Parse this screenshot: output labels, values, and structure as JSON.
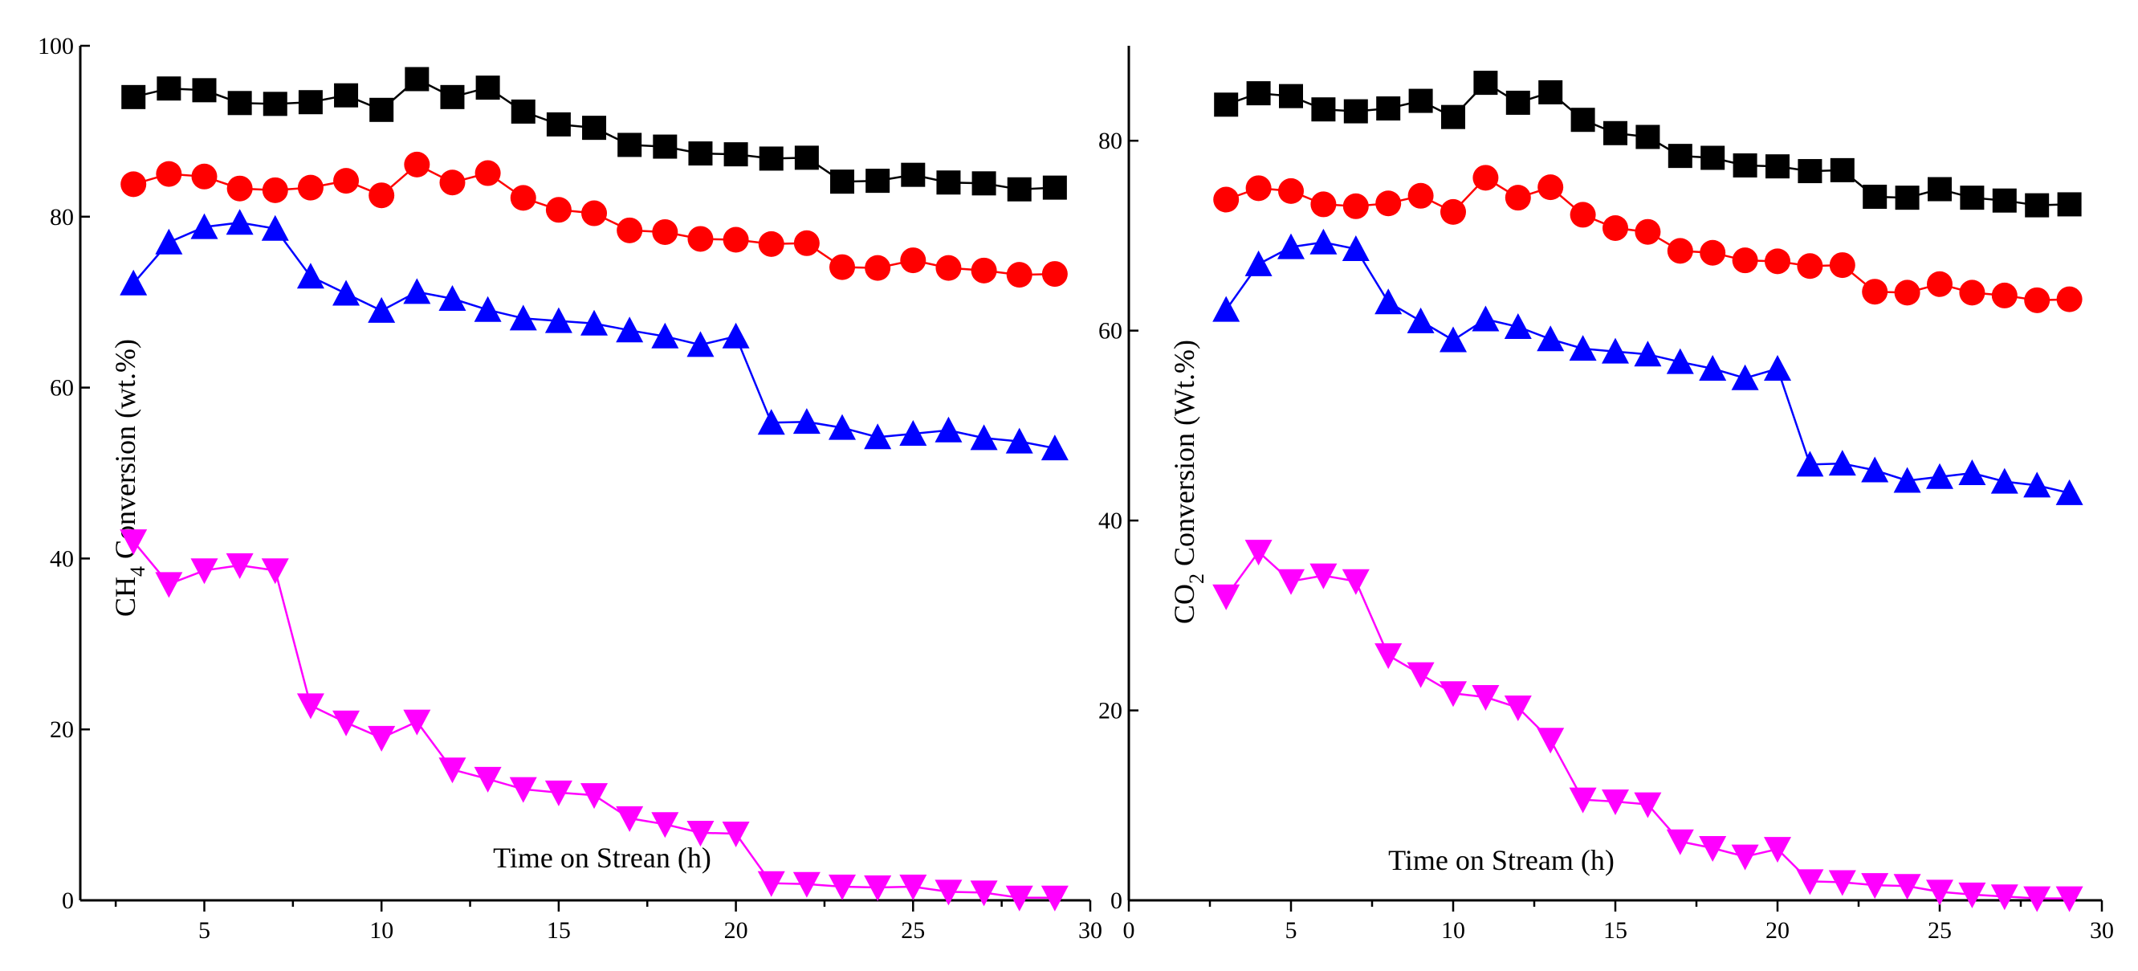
{
  "chart_data": [
    {
      "id": "left",
      "type": "line",
      "title": "",
      "xlabel": "Time on Strean (h)",
      "ylabel_parts": {
        "prefix": "CH",
        "sub": "4",
        "suffix": " Conversion (wt.%)"
      },
      "xlim": [
        1.5,
        30
      ],
      "ylim": [
        0,
        100
      ],
      "xticks": [
        5,
        10,
        15,
        20,
        25,
        30
      ],
      "yticks": [
        0,
        20,
        40,
        60,
        80,
        100
      ],
      "xtick_labels": [
        "5",
        "10",
        "15",
        "20",
        "25",
        "30"
      ],
      "ytick_labels": [
        "0",
        "20",
        "40",
        "60",
        "80",
        "100"
      ],
      "x": [
        3,
        4,
        5,
        6,
        7,
        8,
        9,
        10,
        11,
        12,
        13,
        14,
        15,
        16,
        17,
        18,
        19,
        20,
        21,
        22,
        23,
        24,
        25,
        26,
        27,
        28,
        29
      ],
      "series": [
        {
          "name": "series-1",
          "color": "#000000",
          "marker": "square",
          "values": [
            94,
            95,
            94.8,
            93.3,
            93.2,
            93.4,
            94.2,
            92.5,
            96.1,
            94,
            95.1,
            92.3,
            90.8,
            90.4,
            88.4,
            88.2,
            87.4,
            87.3,
            86.8,
            86.9,
            84.1,
            84.2,
            84.9,
            84,
            83.9,
            83.2,
            83.4
          ]
        },
        {
          "name": "series-2",
          "color": "#ff0000",
          "marker": "circle",
          "values": [
            83.8,
            85,
            84.7,
            83.3,
            83.1,
            83.4,
            84.2,
            82.5,
            86.1,
            84,
            85.1,
            82.2,
            80.8,
            80.4,
            78.4,
            78.2,
            77.4,
            77.3,
            76.8,
            76.9,
            74.1,
            74,
            74.9,
            74,
            73.7,
            73.2,
            73.3
          ]
        },
        {
          "name": "series-3",
          "color": "#0000ff",
          "marker": "triangle-up",
          "values": [
            72.2,
            77,
            78.8,
            79.3,
            78.6,
            73,
            71,
            69,
            71.2,
            70.4,
            69.1,
            68.1,
            67.8,
            67.5,
            66.7,
            66,
            65,
            66,
            55.9,
            56,
            55.3,
            54.2,
            54.6,
            55,
            54.1,
            53.7,
            52.9
          ]
        },
        {
          "name": "series-4",
          "color": "#ff00ff",
          "marker": "triangle-down",
          "values": [
            42,
            37,
            38.6,
            39.2,
            38.6,
            22.8,
            20.8,
            19,
            20.9,
            15.3,
            14.2,
            13,
            12.6,
            12.3,
            9.6,
            8.9,
            7.9,
            7.8,
            2,
            1.9,
            1.6,
            1.5,
            1.6,
            1,
            0.9,
            0.3,
            0.3
          ]
        }
      ]
    },
    {
      "id": "right",
      "type": "line",
      "title": "",
      "xlabel": "Time on Stream (h)",
      "ylabel_parts": {
        "prefix": "CO",
        "sub": "2",
        "suffix": " Conversion (Wt.%)"
      },
      "xlim": [
        0,
        30
      ],
      "ylim": [
        0,
        90
      ],
      "xticks": [
        0,
        5,
        10,
        15,
        20,
        25,
        30
      ],
      "yticks": [
        0,
        20,
        40,
        60,
        80
      ],
      "xtick_labels": [
        "0",
        "5",
        "10",
        "15",
        "20",
        "25",
        "30"
      ],
      "ytick_labels": [
        "0",
        "20",
        "40",
        "60",
        "80"
      ],
      "x": [
        3,
        4,
        5,
        6,
        7,
        8,
        9,
        10,
        11,
        12,
        13,
        14,
        15,
        16,
        17,
        18,
        19,
        20,
        21,
        22,
        23,
        24,
        25,
        26,
        27,
        28,
        29
      ],
      "series": [
        {
          "name": "series-1",
          "color": "#000000",
          "marker": "square",
          "values": [
            83.8,
            85,
            84.7,
            83.3,
            83.1,
            83.4,
            84.2,
            82.5,
            86.1,
            84,
            85.1,
            82.2,
            80.8,
            80.4,
            78.4,
            78.2,
            77.4,
            77.3,
            76.8,
            76.9,
            74.1,
            74,
            74.9,
            74,
            73.7,
            73.2,
            73.3
          ]
        },
        {
          "name": "series-2",
          "color": "#ff0000",
          "marker": "circle",
          "values": [
            73.8,
            75,
            74.7,
            73.3,
            73.1,
            73.4,
            74.2,
            72.5,
            76.1,
            74,
            75.1,
            72.2,
            70.8,
            70.4,
            68.4,
            68.2,
            67.4,
            67.3,
            66.8,
            66.9,
            64.1,
            64,
            64.9,
            64,
            63.7,
            63.2,
            63.3
          ]
        },
        {
          "name": "series-3",
          "color": "#0000ff",
          "marker": "triangle-up",
          "values": [
            62.2,
            67,
            68.8,
            69.3,
            68.6,
            63,
            61,
            59,
            61.2,
            60.4,
            59.1,
            58.1,
            57.8,
            57.5,
            56.7,
            56,
            55,
            56,
            45.9,
            46,
            45.3,
            44.2,
            44.6,
            45,
            44.1,
            43.7,
            42.9
          ]
        },
        {
          "name": "series-4",
          "color": "#ff00ff",
          "marker": "triangle-down",
          "values": [
            32,
            36.7,
            33.6,
            34.2,
            33.6,
            25.8,
            23.8,
            21.8,
            21.4,
            20.3,
            16.9,
            10.6,
            10.4,
            10.1,
            6.2,
            5.5,
            4.6,
            5.4,
            2,
            1.9,
            1.6,
            1.5,
            0.9,
            0.6,
            0.4,
            0.2,
            0.2
          ]
        }
      ]
    }
  ]
}
